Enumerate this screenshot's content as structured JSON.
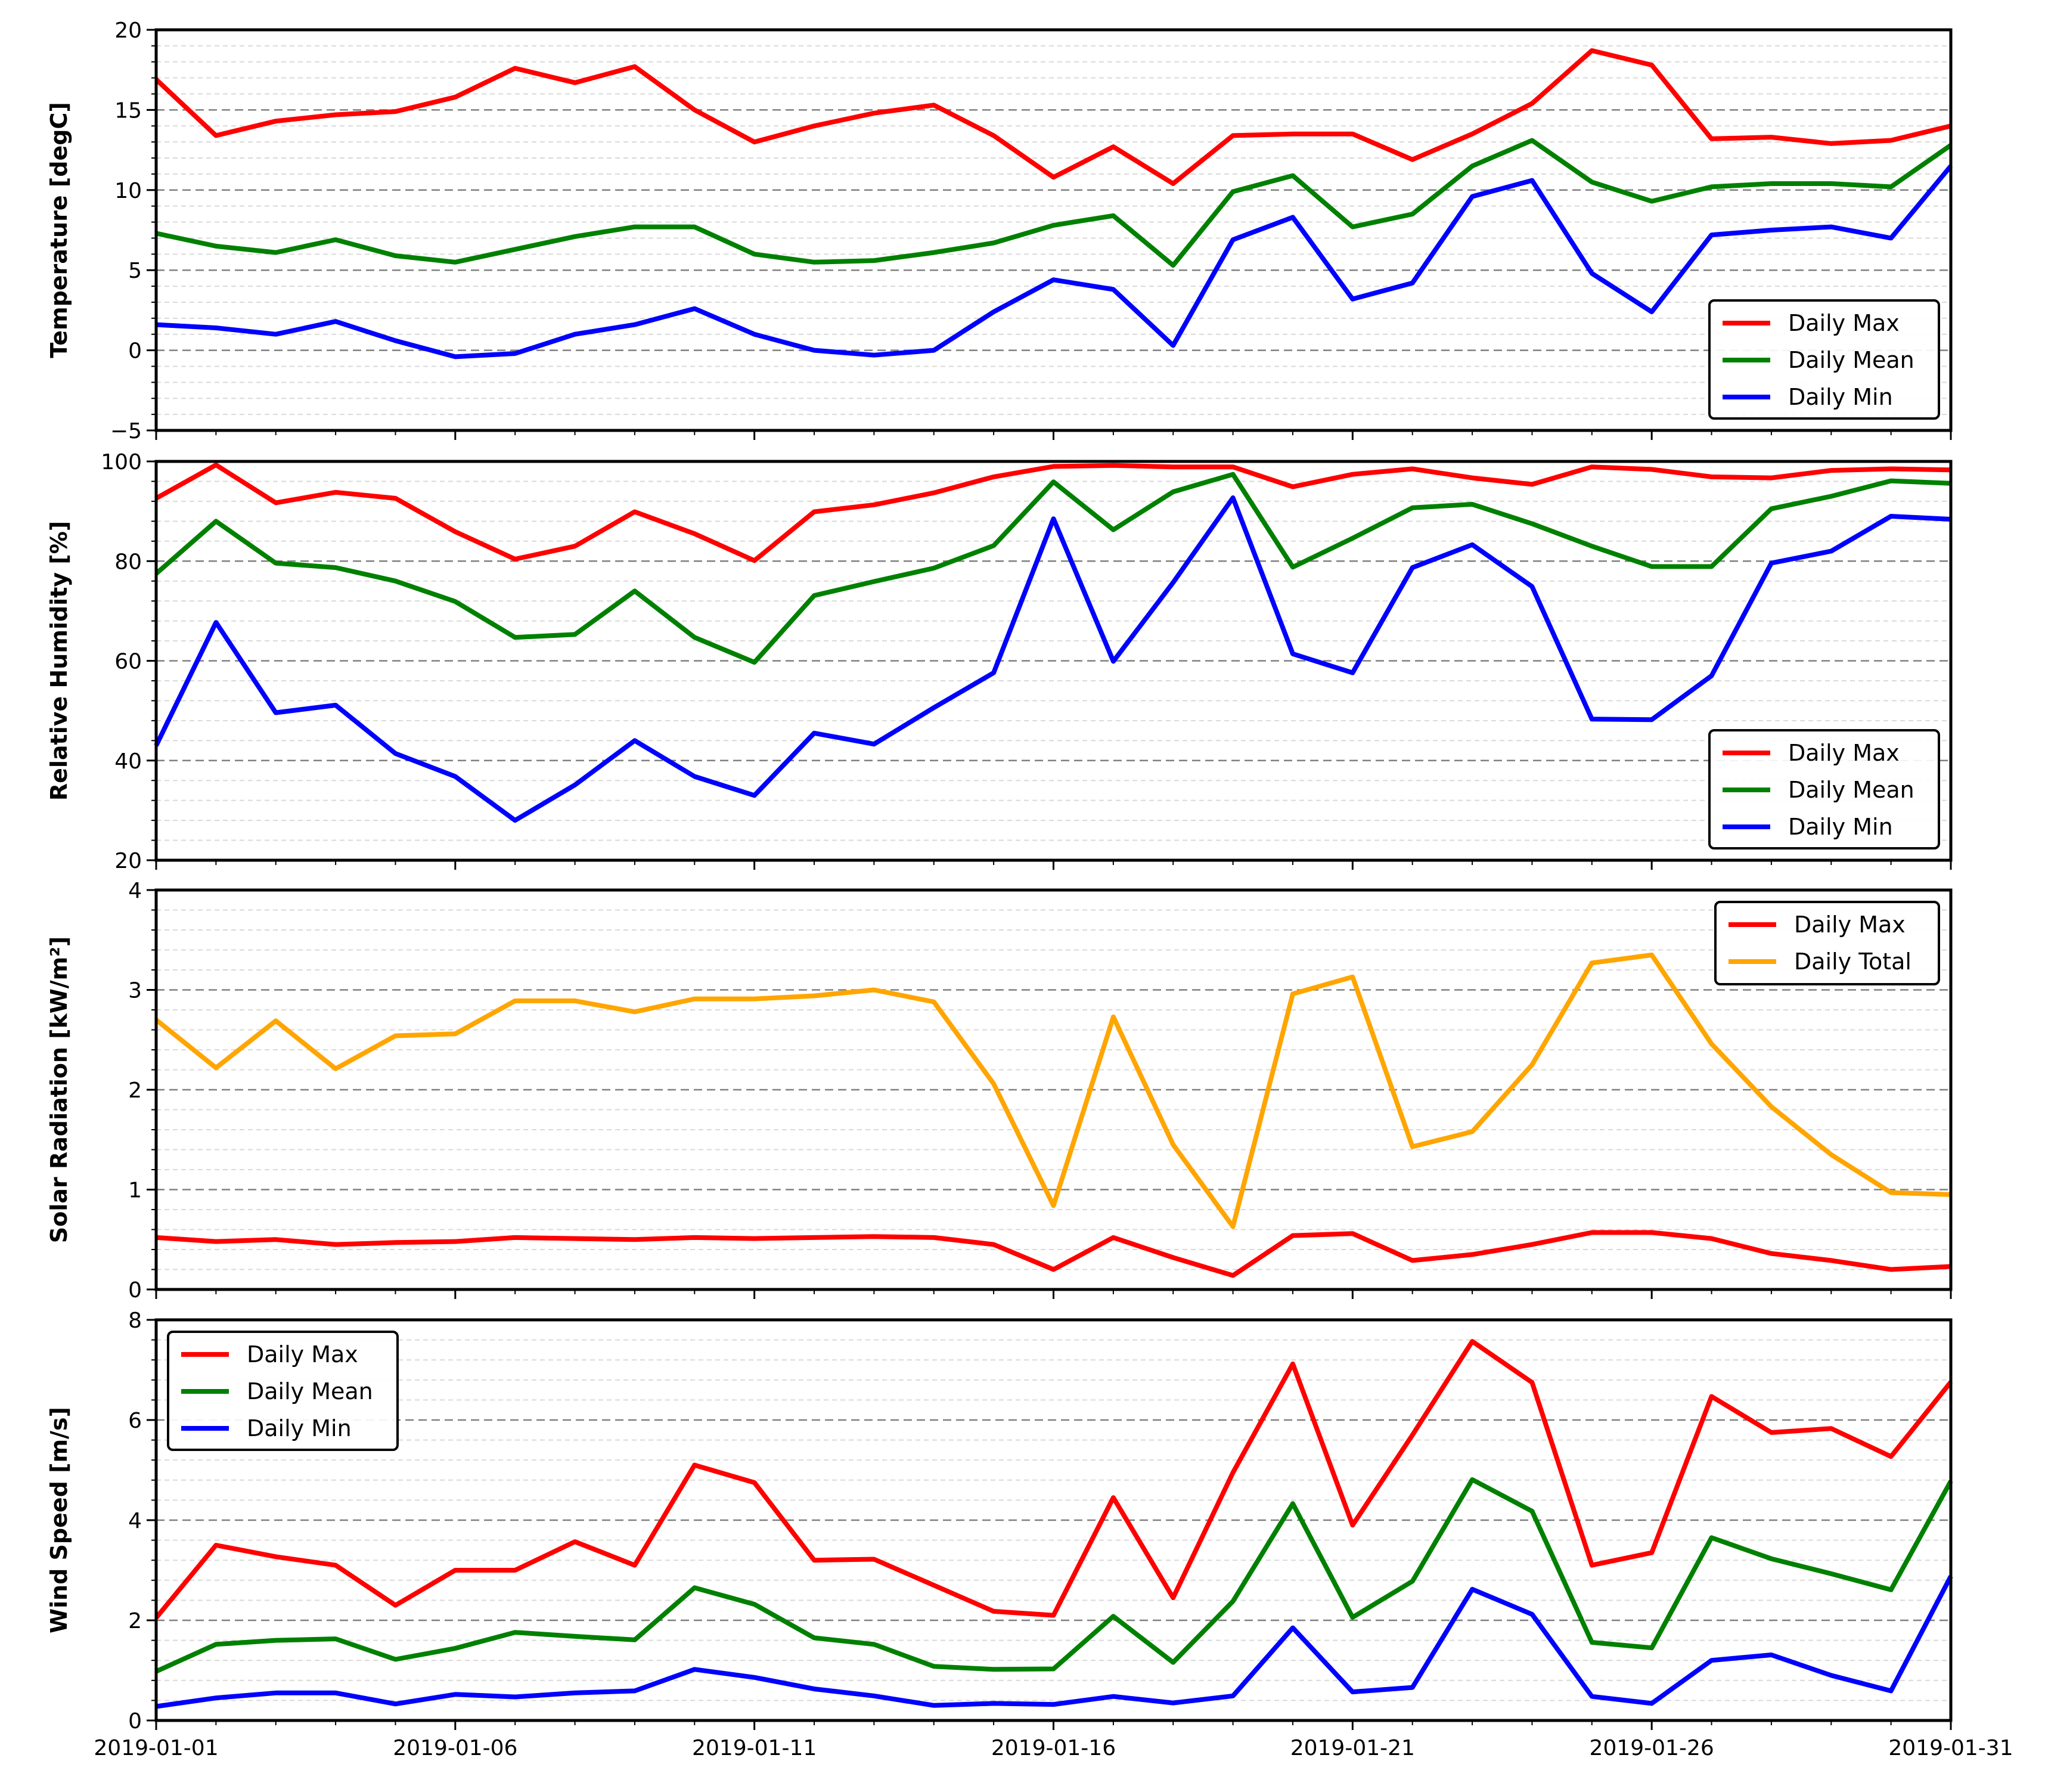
{
  "chart_data": [
    {
      "type": "line",
      "ylabel": "Temperature [degC]",
      "ylim": [
        -5,
        20
      ],
      "yticks": [
        -5,
        0,
        5,
        10,
        15,
        20
      ],
      "ytick_labels": [
        "−5",
        "0",
        "5",
        "10",
        "15",
        "20"
      ],
      "legend_position": "lower-right",
      "show_xtick_labels": false,
      "series": [
        {
          "name": "Daily Max",
          "color": "#ff0000",
          "values": [
            16.9,
            13.4,
            14.3,
            14.7,
            14.9,
            15.8,
            17.6,
            16.7,
            17.7,
            15.0,
            13.0,
            14.0,
            14.8,
            15.3,
            13.4,
            10.8,
            12.7,
            10.4,
            13.4,
            13.5,
            13.5,
            11.9,
            13.5,
            15.4,
            18.7,
            17.8,
            13.2,
            13.3,
            12.9,
            13.1,
            14.0
          ]
        },
        {
          "name": "Daily Mean",
          "color": "#008000",
          "values": [
            7.3,
            6.5,
            6.1,
            6.9,
            5.9,
            5.5,
            6.3,
            7.1,
            7.7,
            7.7,
            6.0,
            5.5,
            5.6,
            6.1,
            6.7,
            7.8,
            8.4,
            5.3,
            9.9,
            10.9,
            7.7,
            8.5,
            11.5,
            13.1,
            10.5,
            9.3,
            10.2,
            10.4,
            10.4,
            10.2,
            12.8
          ]
        },
        {
          "name": "Daily Min",
          "color": "#0000ff",
          "values": [
            1.6,
            1.4,
            1.0,
            1.8,
            0.6,
            -0.4,
            -0.2,
            1.0,
            1.6,
            2.6,
            1.0,
            0.0,
            -0.3,
            0.0,
            2.4,
            4.4,
            3.8,
            0.3,
            6.9,
            8.3,
            3.2,
            4.2,
            9.6,
            10.6,
            4.8,
            2.4,
            7.2,
            7.5,
            7.7,
            7.0,
            11.5
          ]
        }
      ]
    },
    {
      "type": "line",
      "ylabel": "Relative Humidity [%]",
      "ylim": [
        20,
        100
      ],
      "yticks": [
        20,
        40,
        60,
        80,
        100
      ],
      "ytick_labels": [
        "20",
        "40",
        "60",
        "80",
        "100"
      ],
      "legend_position": "lower-right",
      "show_xtick_labels": false,
      "series": [
        {
          "name": "Daily Max",
          "color": "#ff0000",
          "values": [
            92.6,
            99.3,
            91.7,
            93.8,
            92.6,
            85.9,
            80.4,
            83.0,
            89.9,
            85.5,
            80.1,
            89.9,
            91.3,
            93.7,
            96.9,
            99.0,
            99.2,
            98.9,
            98.9,
            94.9,
            97.4,
            98.5,
            96.7,
            95.4,
            98.9,
            98.4,
            96.9,
            96.7,
            98.2,
            98.5,
            98.3
          ]
        },
        {
          "name": "Daily Mean",
          "color": "#008000",
          "values": [
            77.5,
            88.0,
            79.6,
            78.7,
            76.0,
            71.9,
            64.7,
            65.3,
            74.0,
            64.7,
            59.7,
            73.1,
            75.9,
            78.6,
            83.1,
            95.9,
            86.3,
            93.9,
            97.4,
            78.8,
            84.6,
            90.7,
            91.4,
            87.5,
            83.0,
            78.9,
            78.9,
            90.5,
            93.0,
            96.1,
            95.6
          ]
        },
        {
          "name": "Daily Min",
          "color": "#0000ff",
          "values": [
            43.0,
            67.7,
            49.6,
            51.1,
            41.4,
            36.8,
            28.0,
            35.1,
            44.0,
            36.8,
            33.0,
            45.5,
            43.3,
            50.6,
            57.6,
            88.5,
            59.9,
            75.7,
            92.7,
            61.4,
            57.6,
            78.7,
            83.3,
            74.9,
            48.3,
            48.2,
            57.0,
            79.6,
            82.0,
            89.0,
            88.4
          ]
        }
      ]
    },
    {
      "type": "line",
      "ylabel": "Solar Radiation [kW/m²]",
      "ylim": [
        0,
        4
      ],
      "yticks": [
        0,
        1,
        2,
        3,
        4
      ],
      "ytick_labels": [
        "0",
        "1",
        "2",
        "3",
        "4"
      ],
      "legend_position": "upper-right",
      "show_xtick_labels": false,
      "series": [
        {
          "name": "Daily Max",
          "color": "#ff0000",
          "values": [
            0.52,
            0.48,
            0.5,
            0.45,
            0.47,
            0.48,
            0.52,
            0.51,
            0.5,
            0.52,
            0.51,
            0.52,
            0.53,
            0.52,
            0.45,
            0.2,
            0.52,
            0.32,
            0.14,
            0.54,
            0.56,
            0.29,
            0.35,
            0.45,
            0.57,
            0.57,
            0.51,
            0.36,
            0.29,
            0.2,
            0.23
          ]
        },
        {
          "name": "Daily Total",
          "color": "#ffa500",
          "values": [
            2.7,
            2.22,
            2.69,
            2.21,
            2.54,
            2.56,
            2.89,
            2.89,
            2.78,
            2.91,
            2.91,
            2.94,
            3.0,
            2.88,
            2.06,
            0.84,
            2.73,
            1.45,
            0.63,
            2.96,
            3.13,
            1.43,
            1.58,
            2.25,
            3.27,
            3.35,
            2.46,
            1.83,
            1.35,
            0.97,
            0.95
          ]
        }
      ]
    },
    {
      "type": "line",
      "ylabel": "Wind Speed [m/s]",
      "ylim": [
        0,
        8
      ],
      "yticks": [
        0,
        2,
        4,
        6,
        8
      ],
      "ytick_labels": [
        "0",
        "2",
        "4",
        "6",
        "8"
      ],
      "legend_position": "upper-left",
      "show_xtick_labels": true,
      "xtick_labels": [
        "2019-01-01",
        "2019-01-06",
        "2019-01-11",
        "2019-01-16",
        "2019-01-21",
        "2019-01-26",
        "2019-01-31"
      ],
      "series": [
        {
          "name": "Daily Max",
          "color": "#ff0000",
          "values": [
            2.05,
            3.5,
            3.27,
            3.1,
            2.3,
            3.0,
            3.0,
            3.57,
            3.1,
            5.1,
            4.75,
            3.2,
            3.22,
            2.7,
            2.18,
            2.1,
            4.45,
            2.45,
            4.95,
            7.12,
            3.9,
            5.7,
            7.57,
            6.75,
            3.1,
            3.35,
            6.47,
            5.75,
            5.83,
            5.27,
            6.76
          ]
        },
        {
          "name": "Daily Mean",
          "color": "#008000",
          "values": [
            0.98,
            1.52,
            1.6,
            1.63,
            1.22,
            1.44,
            1.76,
            1.68,
            1.61,
            2.65,
            2.32,
            1.65,
            1.52,
            1.08,
            1.02,
            1.03,
            2.08,
            1.16,
            2.38,
            4.33,
            2.06,
            2.78,
            4.81,
            4.18,
            1.56,
            1.45,
            3.65,
            3.23,
            2.93,
            2.61,
            4.78
          ]
        },
        {
          "name": "Daily Min",
          "color": "#0000ff",
          "values": [
            0.28,
            0.45,
            0.55,
            0.55,
            0.33,
            0.52,
            0.47,
            0.55,
            0.59,
            1.02,
            0.86,
            0.63,
            0.49,
            0.3,
            0.34,
            0.32,
            0.48,
            0.35,
            0.49,
            1.85,
            0.57,
            0.66,
            2.62,
            2.12,
            0.48,
            0.34,
            1.2,
            1.31,
            0.9,
            0.59,
            2.88
          ]
        }
      ]
    }
  ]
}
